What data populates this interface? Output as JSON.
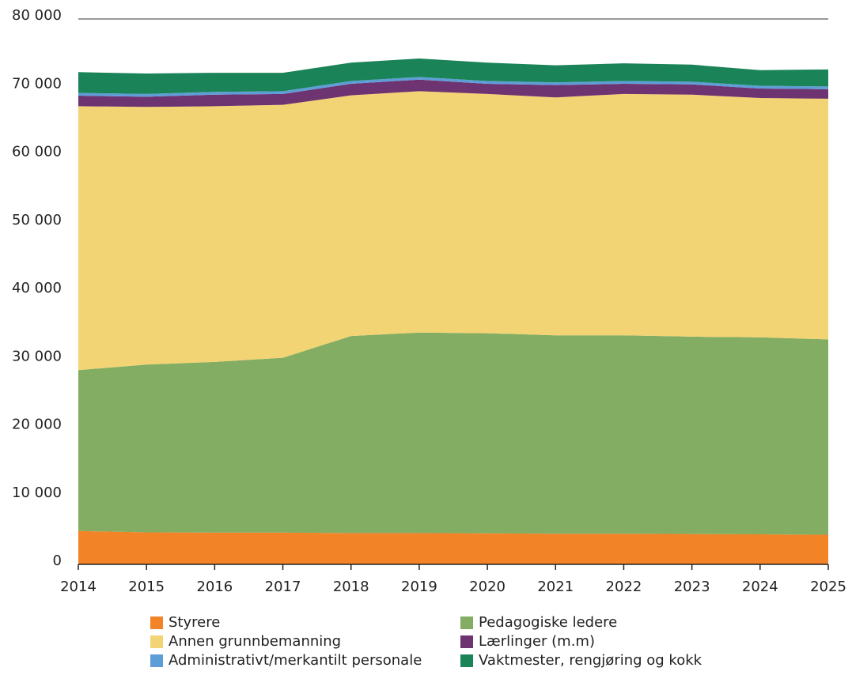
{
  "chart_data": {
    "type": "stacked_area",
    "x": [
      2014,
      2015,
      2016,
      2017,
      2018,
      2019,
      2020,
      2021,
      2022,
      2023,
      2024,
      2025
    ],
    "xlim": [
      2014,
      2025
    ],
    "xticks": [
      2014,
      2015,
      2016,
      2017,
      2018,
      2019,
      2020,
      2021,
      2022,
      2023,
      2024,
      2025
    ],
    "ylim": [
      0,
      80000
    ],
    "yticks": [
      0,
      {
        "value": 10000,
        "label": "10 000"
      },
      {
        "value": 20000,
        "label": "20 000"
      },
      {
        "value": 30000,
        "label": "30 000"
      },
      {
        "value": 40000,
        "label": "40 000"
      },
      {
        "value": 50000,
        "label": "50 000"
      },
      {
        "value": 60000,
        "label": "60 000"
      },
      {
        "value": 70000,
        "label": "70 000"
      },
      {
        "value": 80000,
        "label": "80 000"
      }
    ],
    "series": [
      {
        "name": "Styrere",
        "color": "#f28326",
        "values": [
          4900,
          4700,
          4650,
          4650,
          4600,
          4600,
          4550,
          4500,
          4500,
          4450,
          4400,
          4350
        ]
      },
      {
        "name": "Pedagogiske ledere",
        "color": "#83ad62",
        "values": [
          23600,
          24600,
          25050,
          25650,
          28900,
          29400,
          29350,
          29100,
          29100,
          28950,
          28900,
          28650
        ]
      },
      {
        "name": "Annen grunnbemanning",
        "color": "#f3d474",
        "values": [
          38700,
          37800,
          37500,
          37100,
          35300,
          35400,
          35100,
          34900,
          35400,
          35500,
          35100,
          35300
        ]
      },
      {
        "name": "Lærlinger (m.m)",
        "color": "#6e3371",
        "values": [
          1550,
          1500,
          1700,
          1600,
          1700,
          1700,
          1500,
          1800,
          1500,
          1500,
          1400,
          1400
        ]
      },
      {
        "name": "Administrativt/merkantilt personale",
        "color": "#5e9ed6",
        "values": [
          400,
          400,
          400,
          400,
          400,
          400,
          400,
          400,
          400,
          400,
          400,
          400
        ]
      },
      {
        "name": "Vaktmester, rengjøring og kokk",
        "color": "#1a8358",
        "values": [
          3050,
          3000,
          2800,
          2700,
          2700,
          2700,
          2700,
          2500,
          2600,
          2500,
          2300,
          2500
        ]
      }
    ]
  }
}
